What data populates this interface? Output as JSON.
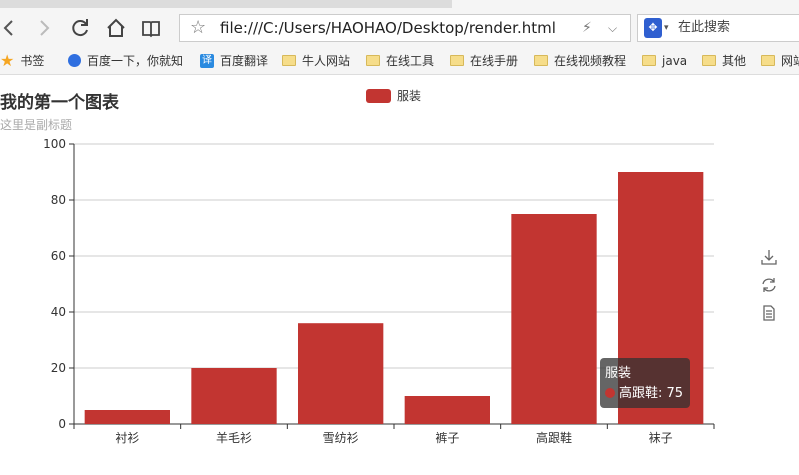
{
  "browser": {
    "url": "file:///C:/Users/HAOHAO/Desktop/render.html",
    "search_placeholder": "在此搜索",
    "bookmarks": [
      {
        "label": "书签",
        "icon": "star-icon"
      },
      {
        "label": "百度一下，你就知",
        "icon": "baidu-paw-icon"
      },
      {
        "label": "百度翻译",
        "icon": "translate-icon"
      },
      {
        "label": "牛人网站",
        "icon": "folder-icon"
      },
      {
        "label": "在线工具",
        "icon": "folder-icon"
      },
      {
        "label": "在线手册",
        "icon": "folder-icon"
      },
      {
        "label": "在线视频教程",
        "icon": "folder-icon"
      },
      {
        "label": "java",
        "icon": "folder-icon"
      },
      {
        "label": "其他",
        "icon": "folder-icon"
      },
      {
        "label": "网站",
        "icon": "folder-icon"
      }
    ]
  },
  "chart_data": {
    "type": "bar",
    "title": "我的第一个图表",
    "subtitle": "这里是副标题",
    "categories": [
      "衬衫",
      "羊毛衫",
      "雪纺衫",
      "裤子",
      "高跟鞋",
      "袜子"
    ],
    "series": [
      {
        "name": "服装",
        "values": [
          5,
          20,
          36,
          10,
          75,
          90
        ]
      }
    ],
    "ylim": [
      0,
      100
    ],
    "yticks": [
      0,
      20,
      40,
      60,
      80,
      100
    ],
    "grid": true,
    "legend_position": "top-center",
    "color": "#c23531"
  },
  "tooltip": {
    "series": "服装",
    "category": "高跟鞋",
    "value": 75,
    "text": "高跟鞋: 75"
  },
  "toolbox": [
    "download-icon",
    "refresh-icon",
    "data-view-icon"
  ]
}
